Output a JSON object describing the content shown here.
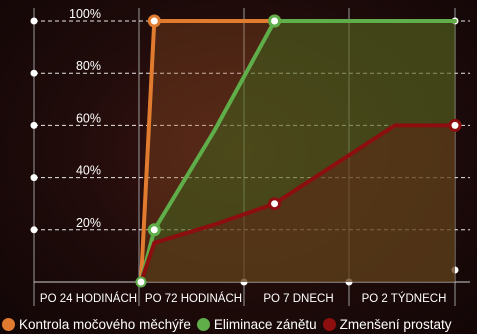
{
  "chart_data": {
    "type": "area",
    "title": "",
    "xlabel": "",
    "ylabel": "",
    "categories": [
      "PO 24 HODINÁCH",
      "PO 72 HODINÁCH",
      "PO 7 DNECH",
      "PO 2 TÝDNECH"
    ],
    "x": [
      "PO 24 HODINÁCH",
      "",
      "PO 72 HODINÁCH",
      "",
      "PO 7 DNECH",
      "",
      "PO 2 TÝDNECH",
      ""
    ],
    "ylim": [
      0,
      100
    ],
    "yticks": [
      "20%",
      "40%",
      "60%",
      "80%",
      "100%"
    ],
    "grid": true,
    "legend_position": "bottom",
    "series": [
      {
        "name": "Kontrola močového měchýře",
        "color": "#e07b30",
        "values": [
          null,
          0,
          100,
          100,
          100,
          100,
          100,
          100
        ],
        "markers": [
          false,
          false,
          true,
          false,
          true,
          false,
          false,
          false
        ]
      },
      {
        "name": "Eliminace zánětu",
        "color": "#5fae4a",
        "values": [
          null,
          0,
          20,
          58,
          100,
          100,
          100,
          100
        ],
        "markers": [
          false,
          false,
          true,
          false,
          true,
          false,
          false,
          false
        ]
      },
      {
        "name": "Zmenšení prostaty",
        "color": "#8c0e0e",
        "values": [
          null,
          0,
          15,
          22,
          30,
          45,
          60,
          60
        ],
        "markers": [
          false,
          false,
          false,
          false,
          true,
          false,
          false,
          true
        ]
      }
    ]
  }
}
